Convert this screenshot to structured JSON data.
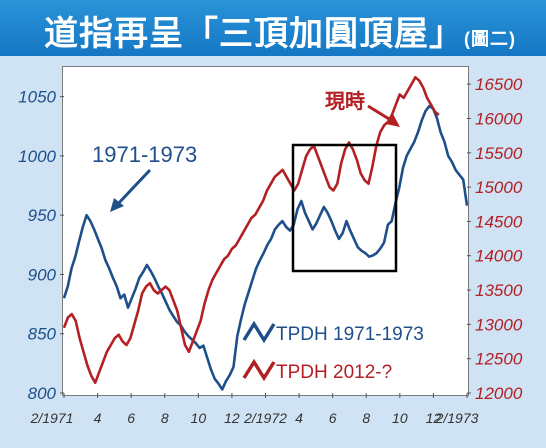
{
  "header": {
    "title": "道指再呈「三頂加圓頂屋」",
    "subtitle": "(圖二)"
  },
  "chart_data": {
    "type": "line",
    "x_tick_labels": [
      "2/1971",
      "4",
      "6",
      "8",
      "10",
      "12",
      "2/1972",
      "4",
      "6",
      "8",
      "10",
      "12",
      "2/1973"
    ],
    "y_left": {
      "ticks": [
        800,
        850,
        900,
        950,
        1000,
        1050
      ],
      "range": [
        800,
        1075
      ]
    },
    "y_right": {
      "ticks": [
        12000,
        12500,
        13000,
        13500,
        14000,
        14500,
        15000,
        15500,
        16000,
        16500
      ],
      "range": [
        12000,
        16750
      ]
    },
    "series": [
      {
        "name": "TPDH 1971-1973",
        "axis": "left",
        "color": "#1f4f8b",
        "values": [
          880,
          890,
          905,
          915,
          928,
          940,
          950,
          945,
          938,
          930,
          922,
          912,
          905,
          897,
          890,
          880,
          883,
          872,
          880,
          888,
          897,
          902,
          908,
          903,
          897,
          890,
          884,
          877,
          870,
          865,
          860,
          857,
          852,
          848,
          845,
          842,
          838,
          840,
          830,
          820,
          812,
          808,
          803,
          810,
          815,
          822,
          848,
          862,
          875,
          885,
          895,
          905,
          912,
          918,
          925,
          930,
          938,
          942,
          945,
          940,
          937,
          942,
          955,
          962,
          952,
          945,
          938,
          943,
          950,
          957,
          952,
          945,
          937,
          930,
          935,
          945,
          937,
          930,
          923,
          920,
          918,
          915,
          916,
          918,
          922,
          927,
          942,
          945,
          960,
          973,
          990,
          1000,
          1006,
          1012,
          1020,
          1030,
          1038,
          1042,
          1040,
          1032,
          1020,
          1012,
          1000,
          995,
          988,
          984,
          980,
          958
        ]
      },
      {
        "name": "TPDH 2012-?",
        "axis": "right",
        "color": "#b32024",
        "values": [
          12950,
          13100,
          13150,
          13050,
          12800,
          12600,
          12400,
          12250,
          12150,
          12300,
          12450,
          12600,
          12700,
          12800,
          12850,
          12750,
          12700,
          12800,
          13000,
          13200,
          13450,
          13550,
          13600,
          13500,
          13450,
          13500,
          13550,
          13500,
          13350,
          13200,
          12950,
          12700,
          12600,
          12750,
          12900,
          13050,
          13300,
          13500,
          13650,
          13750,
          13850,
          13950,
          14000,
          14100,
          14150,
          14250,
          14350,
          14450,
          14550,
          14600,
          14700,
          14800,
          14950,
          15050,
          15150,
          15200,
          15250,
          15150,
          15050,
          14950,
          15050,
          15250,
          15450,
          15550,
          15600,
          15450,
          15300,
          15150,
          15000,
          14950,
          15050,
          15350,
          15550,
          15650,
          15550,
          15400,
          15200,
          15100,
          15050,
          15300,
          15600,
          15800,
          15900,
          15950,
          16050,
          16200,
          16350,
          16300,
          16400,
          16500,
          16600,
          16550,
          16450,
          16300,
          16200,
          16100,
          16050
        ]
      }
    ],
    "annotations": [
      {
        "text": "1971-1973",
        "color": "#1f4f8b"
      },
      {
        "text": "現時",
        "color": "#b32024"
      }
    ]
  },
  "colors": {
    "title_bar": "#1a84cf",
    "background": "#cfe3f4",
    "box": "#000000"
  }
}
